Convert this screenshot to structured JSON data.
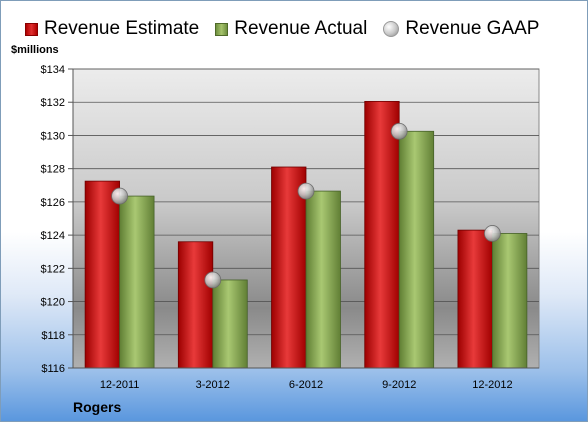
{
  "chart_data": {
    "type": "bar",
    "categories": [
      "12-2011",
      "3-2012",
      "6-2012",
      "9-2012",
      "12-2012"
    ],
    "series": [
      {
        "name": "Revenue Estimate",
        "values": [
          127.25,
          123.6,
          128.1,
          132.05,
          124.3
        ],
        "color": "#cc1a1a"
      },
      {
        "name": "Revenue Actual",
        "values": [
          126.35,
          121.3,
          126.65,
          130.25,
          124.1
        ],
        "color": "#8fae55"
      },
      {
        "name": "Revenue GAAP",
        "values": [
          126.35,
          121.3,
          126.65,
          130.25,
          124.1
        ],
        "color": "#d0d0d0",
        "marker": "circle"
      }
    ],
    "ylabel": "$millions",
    "ylim": [
      116,
      134
    ],
    "yticks": [
      "$116",
      "$118",
      "$120",
      "$122",
      "$124",
      "$126",
      "$128",
      "$130",
      "$132",
      "$134"
    ],
    "grid": true,
    "legend_position": "top"
  },
  "footer": {
    "company": "Rogers"
  }
}
